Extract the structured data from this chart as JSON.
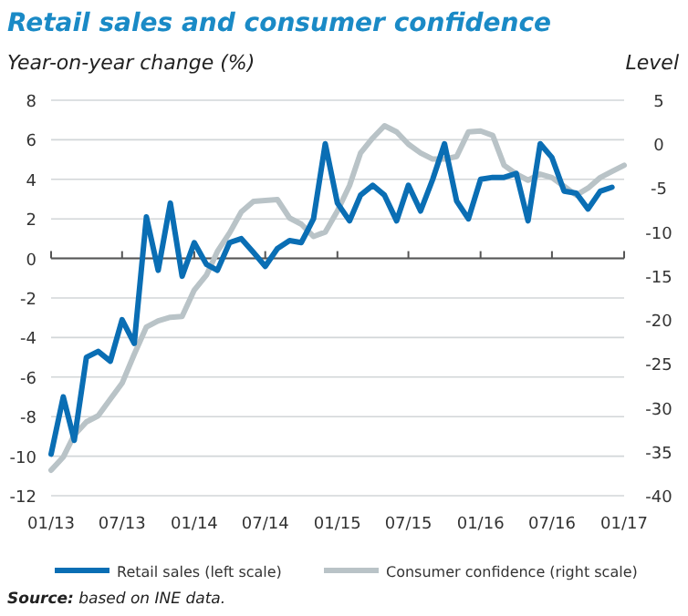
{
  "chart_data": {
    "type": "line",
    "title": "Retail sales and consumer confidence",
    "ylabel": "Year-on-year change (%)",
    "y2label": "Level",
    "xlim": [
      "2013-01",
      "2017-01"
    ],
    "xticks": [
      {
        "value": "2013-01",
        "label": "01/13"
      },
      {
        "value": "2013-07",
        "label": "07/13"
      },
      {
        "value": "2014-01",
        "label": "01/14"
      },
      {
        "value": "2014-07",
        "label": "07/14"
      },
      {
        "value": "2015-01",
        "label": "01/15"
      },
      {
        "value": "2015-07",
        "label": "07/15"
      },
      {
        "value": "2016-01",
        "label": "01/16"
      },
      {
        "value": "2016-07",
        "label": "07/16"
      },
      {
        "value": "2017-01",
        "label": "01/17"
      }
    ],
    "ylim": [
      -12,
      8
    ],
    "yticks": [
      -12,
      -10,
      -8,
      -6,
      -4,
      -2,
      0,
      2,
      4,
      6,
      8
    ],
    "y2lim": [
      -40,
      5
    ],
    "y2ticks": [
      -40,
      -35,
      -30,
      -25,
      -20,
      -15,
      -10,
      -5,
      0,
      5
    ],
    "grid": "y",
    "legend": "bottom",
    "line_style": "solid",
    "series": [
      {
        "name": "Retail sales (left scale)",
        "color": "#0a6eb4",
        "x": [
          "2013-01",
          "2013-02",
          "2013-03",
          "2013-04",
          "2013-05",
          "2013-06",
          "2013-07",
          "2013-08",
          "2013-09",
          "2013-10",
          "2013-11",
          "2013-12",
          "2014-01",
          "2014-02",
          "2014-03",
          "2014-04",
          "2014-05",
          "2014-06",
          "2014-07",
          "2014-08",
          "2014-09",
          "2014-10",
          "2014-11",
          "2014-12",
          "2015-01",
          "2015-02",
          "2015-03",
          "2015-04",
          "2015-05",
          "2015-06",
          "2015-07",
          "2015-08",
          "2015-09",
          "2015-10",
          "2015-11",
          "2015-12",
          "2016-01",
          "2016-02",
          "2016-03",
          "2016-04",
          "2016-05",
          "2016-06",
          "2016-07",
          "2016-08",
          "2016-09",
          "2016-10",
          "2016-11",
          "2016-12"
        ],
        "values": [
          -9.9,
          -7.0,
          -9.2,
          -5.0,
          -4.7,
          -5.2,
          -3.1,
          -4.3,
          2.1,
          -0.6,
          2.8,
          -0.9,
          0.8,
          -0.3,
          -0.6,
          0.8,
          1.0,
          0.3,
          -0.4,
          0.5,
          0.9,
          0.8,
          2.0,
          5.8,
          2.8,
          1.9,
          3.2,
          3.7,
          3.2,
          1.9,
          3.7,
          2.4,
          4.0,
          5.8,
          2.9,
          2.0,
          4.0,
          4.1,
          4.1,
          4.3,
          1.9,
          5.8,
          5.1,
          3.4,
          3.3,
          2.5,
          3.4,
          3.6
        ]
      },
      {
        "name": "Consumer confidence (right scale)",
        "color": "#b9c3c7",
        "axis": "y2",
        "x": [
          "2013-01",
          "2013-02",
          "2013-03",
          "2013-04",
          "2013-05",
          "2013-06",
          "2013-07",
          "2013-08",
          "2013-09",
          "2013-10",
          "2013-11",
          "2013-12",
          "2014-01",
          "2014-02",
          "2014-03",
          "2014-04",
          "2014-05",
          "2014-06",
          "2014-07",
          "2014-08",
          "2014-09",
          "2014-10",
          "2014-11",
          "2014-12",
          "2015-01",
          "2015-02",
          "2015-03",
          "2015-04",
          "2015-05",
          "2015-06",
          "2015-07",
          "2015-08",
          "2015-09",
          "2015-10",
          "2015-11",
          "2015-12",
          "2016-01",
          "2016-02",
          "2016-03",
          "2016-04",
          "2016-05",
          "2016-06",
          "2016-07",
          "2016-08",
          "2016-09",
          "2016-10",
          "2016-11",
          "2016-12",
          "2017-01"
        ],
        "values": [
          -37.1,
          -35.6,
          -33.1,
          -31.6,
          -30.9,
          -29.0,
          -27.2,
          -23.9,
          -20.8,
          -20.1,
          -19.7,
          -19.6,
          -16.6,
          -14.9,
          -12.2,
          -10.1,
          -7.7,
          -6.5,
          -6.4,
          -6.3,
          -8.4,
          -9.1,
          -10.5,
          -10.0,
          -7.6,
          -4.7,
          -1.0,
          0.7,
          2.1,
          1.4,
          0.0,
          -1.0,
          -1.7,
          -1.7,
          -1.4,
          1.4,
          1.5,
          1.0,
          -2.4,
          -3.4,
          -4.1,
          -3.4,
          -3.8,
          -4.8,
          -5.8,
          -5.0,
          -3.8,
          -3.1,
          -2.4
        ]
      }
    ],
    "annotations": [
      "Source: based on INE data."
    ]
  }
}
